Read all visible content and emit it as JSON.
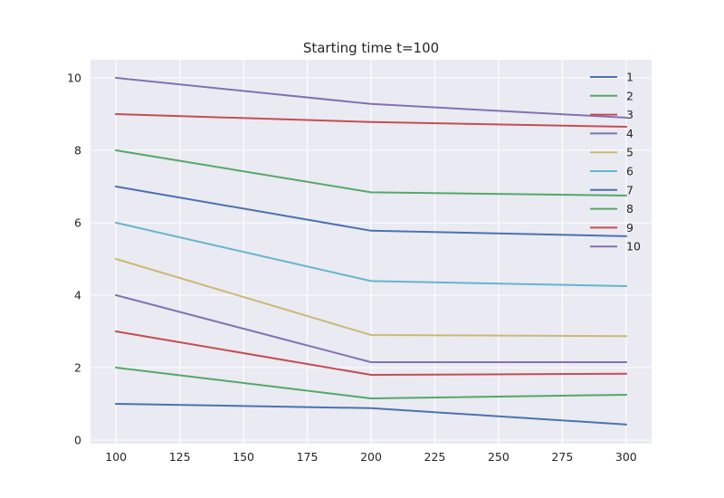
{
  "chart_data": {
    "type": "line",
    "title": "Starting time t=100",
    "xlabel": "",
    "ylabel": "",
    "x": [
      100,
      200,
      300
    ],
    "xlim": [
      90,
      310
    ],
    "ylim": [
      -0.1,
      10.5
    ],
    "xticks": [
      100,
      125,
      150,
      175,
      200,
      225,
      250,
      275,
      300
    ],
    "yticks": [
      0,
      2,
      4,
      6,
      8,
      10
    ],
    "grid": true,
    "style": "seaborn-darkgrid",
    "legend_position": "top-right",
    "series": [
      {
        "name": "1",
        "color": "#4c72b0",
        "values": [
          1.0,
          0.88,
          0.43
        ]
      },
      {
        "name": "2",
        "color": "#55a868",
        "values": [
          2.0,
          1.15,
          1.25
        ]
      },
      {
        "name": "3",
        "color": "#c44e52",
        "values": [
          3.0,
          1.8,
          1.83
        ]
      },
      {
        "name": "4",
        "color": "#8172b2",
        "values": [
          4.0,
          2.15,
          2.15
        ]
      },
      {
        "name": "5",
        "color": "#ccb974",
        "values": [
          5.0,
          2.9,
          2.87
        ]
      },
      {
        "name": "6",
        "color": "#64b5cd",
        "values": [
          6.0,
          4.39,
          4.25
        ]
      },
      {
        "name": "7",
        "color": "#4c72b0",
        "values": [
          7.0,
          5.78,
          5.63
        ]
      },
      {
        "name": "8",
        "color": "#55a868",
        "values": [
          8.0,
          6.84,
          6.75
        ]
      },
      {
        "name": "9",
        "color": "#c44e52",
        "values": [
          9.0,
          8.78,
          8.65
        ]
      },
      {
        "name": "10",
        "color": "#8172b2",
        "values": [
          10.0,
          9.28,
          8.9
        ]
      }
    ],
    "colors": {
      "axes_background": "#eaeaf2",
      "grid": "#ffffff",
      "text": "#262626"
    }
  }
}
